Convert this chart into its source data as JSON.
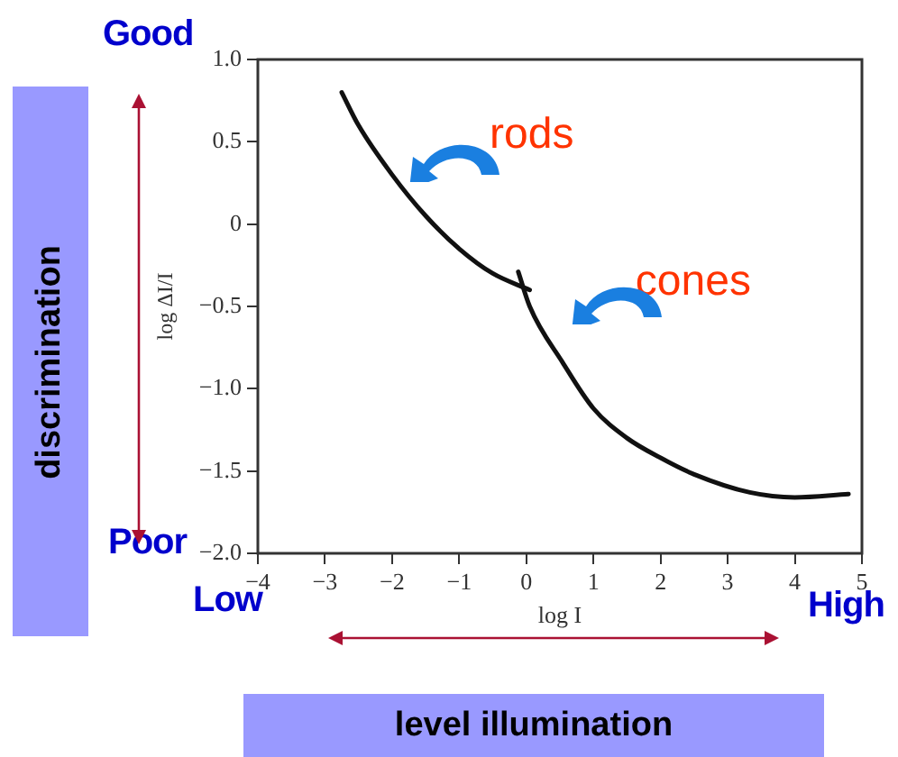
{
  "chart_data": {
    "type": "line",
    "xlabel": "log I",
    "ylabel": "log ΔI/I",
    "xlim": [
      -4,
      5
    ],
    "xticks": [
      {
        "value": -4,
        "label": "−4"
      },
      {
        "value": -3,
        "label": "−3"
      },
      {
        "value": -2,
        "label": "−2"
      },
      {
        "value": -1,
        "label": "−1"
      },
      0,
      1,
      2,
      3,
      4,
      5
    ],
    "ylim": [
      -2,
      1
    ],
    "yticks": [
      {
        "value": -2,
        "label": "−2.0"
      },
      {
        "value": -1.5,
        "label": "−1.5"
      },
      {
        "value": -1,
        "label": "−1.0"
      },
      {
        "value": -0.5,
        "label": "−0.5"
      },
      {
        "value": 0,
        "label": "0"
      },
      {
        "value": 0.5,
        "label": "0.5"
      },
      {
        "value": 1,
        "label": "1.0"
      }
    ],
    "grid": false,
    "legend": false,
    "marker": "none",
    "line_style": "solid",
    "series": [
      {
        "name": "rods",
        "color": "#111111",
        "x": [
          -2.75,
          -2.5,
          -2,
          -1.5,
          -1,
          -0.5,
          0.05
        ],
        "values": [
          0.8,
          0.6,
          0.3,
          0.05,
          -0.15,
          -0.3,
          -0.4
        ]
      },
      {
        "name": "cones",
        "color": "#111111",
        "x": [
          -0.12,
          0.05,
          0.54,
          1,
          1.5,
          2,
          2.5,
          3.33,
          4,
          4.8
        ],
        "values": [
          -0.29,
          -0.5,
          -0.84,
          -1.12,
          -1.3,
          -1.42,
          -1.52,
          -1.63,
          -1.66,
          -1.64
        ]
      }
    ],
    "annotations": [
      "Good",
      "Poor",
      "Low",
      "High",
      "discrimination",
      "level illumination"
    ]
  }
}
